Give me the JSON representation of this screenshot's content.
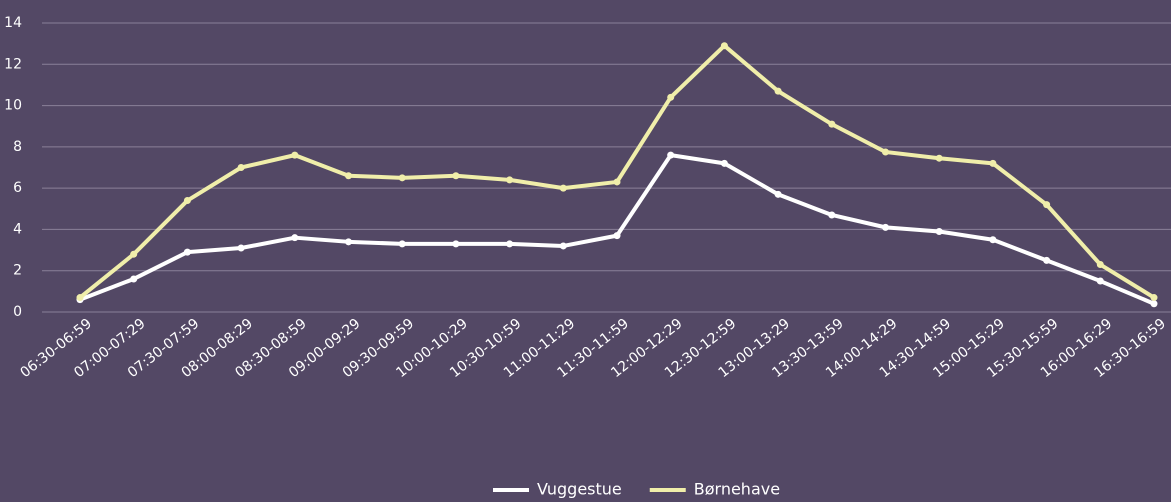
{
  "chart_data": {
    "type": "line",
    "categories": [
      "06:30-06:59",
      "07:00-07:29",
      "07:30-07:59",
      "08:00-08:29",
      "08:30-08:59",
      "09:00-09:29",
      "09:30-09:59",
      "10:00-10:29",
      "10:30-10:59",
      "11:00-11:29",
      "11:30-11:59",
      "12:00-12:29",
      "12:30-12:59",
      "13:00-13:29",
      "13:30-13:59",
      "14:00-14:29",
      "14:30-14:59",
      "15:00-15:29",
      "15:30-15:59",
      "16:00-16:29",
      "16:30-16:59"
    ],
    "series": [
      {
        "name": "Vuggestue",
        "color": "#ffffff",
        "values": [
          0.6,
          1.6,
          2.9,
          3.1,
          3.6,
          3.4,
          3.3,
          3.3,
          3.3,
          3.2,
          3.7,
          7.6,
          7.2,
          5.7,
          4.7,
          4.1,
          3.9,
          3.5,
          2.5,
          1.5,
          0.4
        ]
      },
      {
        "name": "Børnehave",
        "color": "#f0eeaa",
        "values": [
          0.7,
          2.8,
          5.4,
          7.0,
          7.6,
          6.6,
          6.5,
          6.6,
          6.4,
          6.0,
          6.3,
          10.4,
          12.9,
          10.7,
          9.1,
          7.75,
          7.45,
          7.2,
          5.2,
          2.3,
          0.7
        ]
      }
    ],
    "ylim": [
      0,
      14
    ],
    "yticks": [
      0,
      2,
      4,
      6,
      8,
      10,
      12,
      14
    ],
    "grid": true,
    "legend": "bottom"
  }
}
